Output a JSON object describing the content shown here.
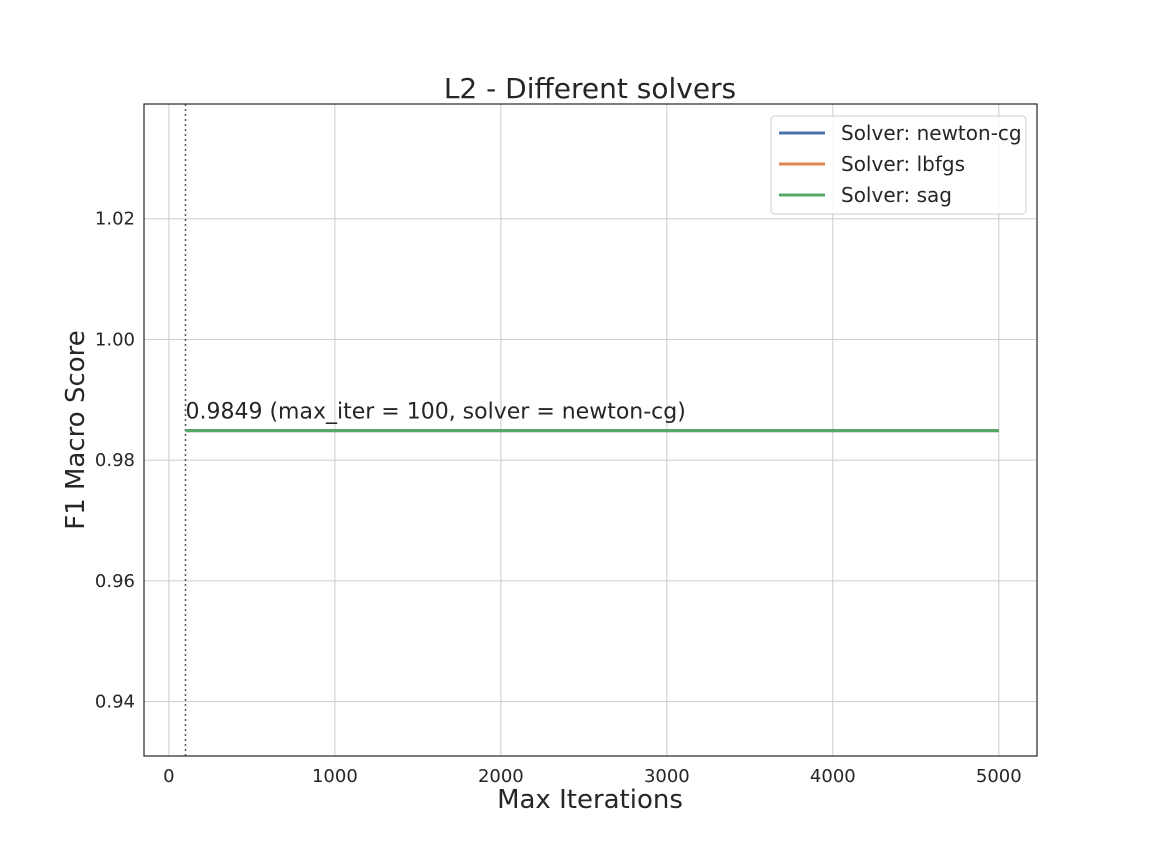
{
  "chart_data": {
    "type": "line",
    "title": "L2 - Different solvers",
    "xlabel": "Max Iterations",
    "ylabel": "F1 Macro Score",
    "xlim": [
      -150,
      5230
    ],
    "ylim": [
      0.931,
      1.039
    ],
    "x_ticks": [
      0,
      1000,
      2000,
      3000,
      4000,
      5000
    ],
    "y_ticks": [
      0.94,
      0.96,
      0.98,
      1.0,
      1.02
    ],
    "y_tick_labels": [
      "0.94",
      "0.96",
      "0.98",
      "1.00",
      "1.02"
    ],
    "grid": true,
    "legend_position": "top-right",
    "x": [
      100,
      200,
      500,
      1000,
      2000,
      3000,
      4000,
      5000
    ],
    "series": [
      {
        "name": "Solver: newton-cg",
        "color": "#4c72b0",
        "values": [
          0.9849,
          0.9849,
          0.9849,
          0.9849,
          0.9849,
          0.9849,
          0.9849,
          0.9849
        ]
      },
      {
        "name": "Solver: lbfgs",
        "color": "#dd8452",
        "values": [
          0.9849,
          0.9849,
          0.9849,
          0.9849,
          0.9849,
          0.9849,
          0.9849,
          0.9849
        ]
      },
      {
        "name": "Solver: sag",
        "color": "#55a868",
        "values": [
          0.9849,
          0.9849,
          0.9849,
          0.9849,
          0.9849,
          0.9849,
          0.9849,
          0.9849
        ]
      }
    ],
    "vline_x": 100,
    "annotation": {
      "text": "0.9849 (max_iter = 100, solver = newton-cg)",
      "x": 100,
      "y": 0.9849
    }
  }
}
